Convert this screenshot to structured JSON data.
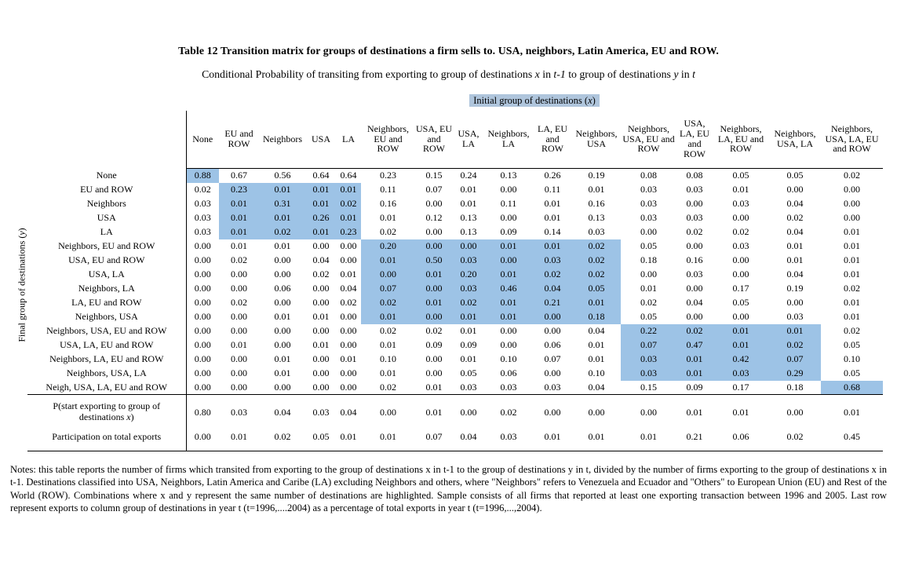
{
  "page": {
    "title": "Table 12 Transition matrix for groups of destinations a firm sells to. USA, neighbors, Latin America, EU and ROW.",
    "subtitle_segments": [
      {
        "t": "Conditional Probability of transiting from exporting to group of destinations "
      },
      {
        "t": "x",
        "i": true
      },
      {
        "t": " in "
      },
      {
        "t": "t-1",
        "i": true
      },
      {
        "t": " to group of destinations "
      },
      {
        "t": "y",
        "i": true
      },
      {
        "t": " in "
      },
      {
        "t": "t",
        "i": true
      }
    ],
    "notes": "Notes: this table reports the number of firms which transited from exporting to the group of destinations x in t-1 to the group of destinations y in t, divided by the number of firms exporting to the group of destinations x in t-1. Destinations classified into USA, Neighbors, Latin America and Caribe (LA) excluding Neighbors and others, where \"Neighbors\" refers to Venezuela and Ecuador and \"Others\" to European Union (EU) and Rest of the World (ROW). Combinations where x and y represent the same number of destinations are highlighted. Sample consists of all firms that reported at least one exporting transaction between 1996 and 2005. Last row represent exports to column group of destinations in year t (t=1996,....2004) as a percentage of total exports in year t (t=1996,...,2004)."
  },
  "table": {
    "highlight_color": "#9DC3E6",
    "label_highlight_color": "#AFC5DC",
    "initial_group_label_segments": [
      {
        "t": "Initial group of destinations  ("
      },
      {
        "t": "x",
        "i": true
      },
      {
        "t": ")"
      }
    ],
    "final_group_label_segments": [
      {
        "t": "Final group of destinations ("
      },
      {
        "t": "y",
        "i": true
      },
      {
        "t": ")"
      }
    ],
    "columns": [
      "None",
      "EU and ROW",
      "Neighbors",
      "USA",
      "LA",
      "Neighbors, EU and ROW",
      "USA, EU and ROW",
      "USA, LA",
      "Neighbors, LA",
      "LA, EU and ROW",
      "Neighbors, USA",
      "Neighbors, USA, EU and ROW",
      "USA, LA, EU and ROW",
      "Neighbors, LA, EU and ROW",
      "Neighbors, USA, LA",
      "Neighbors, USA, LA, EU and ROW"
    ],
    "group_sizes": [
      0,
      1,
      1,
      1,
      1,
      2,
      2,
      2,
      2,
      2,
      2,
      3,
      3,
      3,
      3,
      4
    ],
    "rows": [
      {
        "label": "None",
        "values": [
          "0.88",
          "0.67",
          "0.56",
          "0.64",
          "0.64",
          "0.23",
          "0.15",
          "0.24",
          "0.13",
          "0.26",
          "0.19",
          "0.08",
          "0.08",
          "0.05",
          "0.05",
          "0.02"
        ]
      },
      {
        "label": "EU and ROW",
        "values": [
          "0.02",
          "0.23",
          "0.01",
          "0.01",
          "0.01",
          "0.11",
          "0.07",
          "0.01",
          "0.00",
          "0.11",
          "0.01",
          "0.03",
          "0.03",
          "0.01",
          "0.00",
          "0.00"
        ]
      },
      {
        "label": "Neighbors",
        "values": [
          "0.03",
          "0.01",
          "0.31",
          "0.01",
          "0.02",
          "0.16",
          "0.00",
          "0.01",
          "0.11",
          "0.01",
          "0.16",
          "0.03",
          "0.00",
          "0.03",
          "0.04",
          "0.00"
        ]
      },
      {
        "label": "USA",
        "values": [
          "0.03",
          "0.01",
          "0.01",
          "0.26",
          "0.01",
          "0.01",
          "0.12",
          "0.13",
          "0.00",
          "0.01",
          "0.13",
          "0.03",
          "0.03",
          "0.00",
          "0.02",
          "0.00"
        ]
      },
      {
        "label": "LA",
        "values": [
          "0.03",
          "0.01",
          "0.02",
          "0.01",
          "0.23",
          "0.02",
          "0.00",
          "0.13",
          "0.09",
          "0.14",
          "0.03",
          "0.00",
          "0.02",
          "0.02",
          "0.04",
          "0.01"
        ]
      },
      {
        "label": "Neighbors, EU and ROW",
        "values": [
          "0.00",
          "0.01",
          "0.01",
          "0.00",
          "0.00",
          "0.20",
          "0.00",
          "0.00",
          "0.01",
          "0.01",
          "0.02",
          "0.05",
          "0.00",
          "0.03",
          "0.01",
          "0.01"
        ]
      },
      {
        "label": "USA, EU and ROW",
        "values": [
          "0.00",
          "0.02",
          "0.00",
          "0.04",
          "0.00",
          "0.01",
          "0.50",
          "0.03",
          "0.00",
          "0.03",
          "0.02",
          "0.18",
          "0.16",
          "0.00",
          "0.01",
          "0.01"
        ]
      },
      {
        "label": "USA, LA",
        "values": [
          "0.00",
          "0.00",
          "0.00",
          "0.02",
          "0.01",
          "0.00",
          "0.01",
          "0.20",
          "0.01",
          "0.02",
          "0.02",
          "0.00",
          "0.03",
          "0.00",
          "0.04",
          "0.01"
        ]
      },
      {
        "label": "Neighbors, LA",
        "values": [
          "0.00",
          "0.00",
          "0.06",
          "0.00",
          "0.04",
          "0.07",
          "0.00",
          "0.03",
          "0.46",
          "0.04",
          "0.05",
          "0.01",
          "0.00",
          "0.17",
          "0.19",
          "0.02"
        ]
      },
      {
        "label": "LA, EU and ROW",
        "values": [
          "0.00",
          "0.02",
          "0.00",
          "0.00",
          "0.02",
          "0.02",
          "0.01",
          "0.02",
          "0.01",
          "0.21",
          "0.01",
          "0.02",
          "0.04",
          "0.05",
          "0.00",
          "0.01"
        ]
      },
      {
        "label": "Neighbors, USA",
        "values": [
          "0.00",
          "0.00",
          "0.01",
          "0.01",
          "0.00",
          "0.01",
          "0.00",
          "0.01",
          "0.01",
          "0.00",
          "0.18",
          "0.05",
          "0.00",
          "0.00",
          "0.03",
          "0.01"
        ]
      },
      {
        "label": "Neighbors, USA, EU and ROW",
        "values": [
          "0.00",
          "0.00",
          "0.00",
          "0.00",
          "0.00",
          "0.02",
          "0.02",
          "0.01",
          "0.00",
          "0.00",
          "0.04",
          "0.22",
          "0.02",
          "0.01",
          "0.01",
          "0.02"
        ]
      },
      {
        "label": "USA, LA, EU and ROW",
        "values": [
          "0.00",
          "0.01",
          "0.00",
          "0.01",
          "0.00",
          "0.01",
          "0.09",
          "0.09",
          "0.00",
          "0.06",
          "0.01",
          "0.07",
          "0.47",
          "0.01",
          "0.02",
          "0.05"
        ]
      },
      {
        "label": "Neighbors, LA, EU and ROW",
        "values": [
          "0.00",
          "0.00",
          "0.01",
          "0.00",
          "0.01",
          "0.10",
          "0.00",
          "0.01",
          "0.10",
          "0.07",
          "0.01",
          "0.03",
          "0.01",
          "0.42",
          "0.07",
          "0.10"
        ]
      },
      {
        "label": "Neighbors, USA, LA",
        "values": [
          "0.00",
          "0.00",
          "0.01",
          "0.00",
          "0.00",
          "0.01",
          "0.00",
          "0.05",
          "0.06",
          "0.00",
          "0.10",
          "0.03",
          "0.01",
          "0.03",
          "0.29",
          "0.05"
        ]
      },
      {
        "label": "Neigh, USA, LA, EU and ROW",
        "values": [
          "0.00",
          "0.00",
          "0.00",
          "0.00",
          "0.00",
          "0.02",
          "0.01",
          "0.03",
          "0.03",
          "0.03",
          "0.04",
          "0.15",
          "0.09",
          "0.17",
          "0.18",
          "0.68"
        ]
      }
    ],
    "footer_rows": [
      {
        "label_segments": [
          {
            "t": "P(start exporting to group of destinations "
          },
          {
            "t": "x",
            "i": true
          },
          {
            "t": ")"
          }
        ],
        "values": [
          "0.80",
          "0.03",
          "0.04",
          "0.03",
          "0.04",
          "0.00",
          "0.01",
          "0.00",
          "0.02",
          "0.00",
          "0.00",
          "0.00",
          "0.01",
          "0.01",
          "0.00",
          "0.01"
        ]
      },
      {
        "label_segments": [
          {
            "t": "Participation on total exports"
          }
        ],
        "values": [
          "0.00",
          "0.01",
          "0.02",
          "0.05",
          "0.01",
          "0.01",
          "0.07",
          "0.04",
          "0.03",
          "0.01",
          "0.01",
          "0.01",
          "0.21",
          "0.06",
          "0.02",
          "0.45"
        ]
      }
    ]
  }
}
